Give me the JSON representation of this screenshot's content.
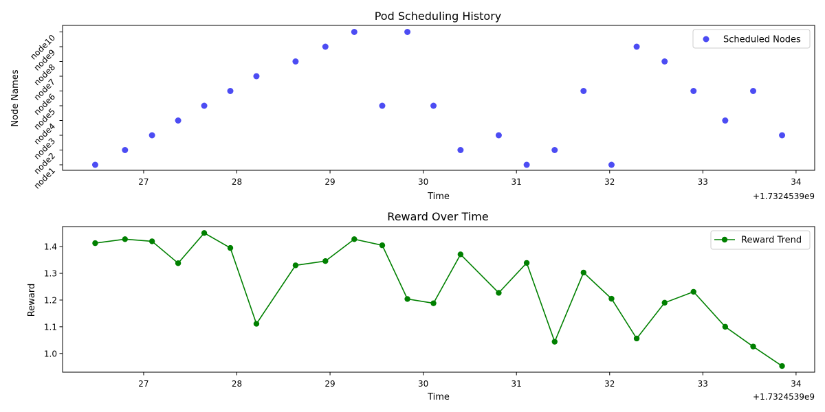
{
  "chart_data": [
    {
      "type": "scatter",
      "title": "Pod Scheduling History",
      "xlabel": "Time",
      "ylabel": "Node Names",
      "x_offset_label": "+1.7324539e9",
      "xlim": [
        26.13,
        34.2
      ],
      "xticks": [
        27,
        28,
        29,
        30,
        31,
        32,
        33,
        34
      ],
      "yticks": [
        "node1",
        "node2",
        "node3",
        "node4",
        "node5",
        "node6",
        "node7",
        "node8",
        "node9",
        "node10"
      ],
      "series": [
        {
          "name": "Scheduled Nodes",
          "color": "#0000ee",
          "x": [
            26.48,
            26.8,
            27.09,
            27.37,
            27.65,
            27.93,
            28.21,
            28.63,
            28.95,
            29.26,
            29.56,
            29.83,
            30.11,
            30.4,
            30.81,
            31.11,
            31.41,
            31.72,
            32.02,
            32.29,
            32.59,
            32.9,
            33.24,
            33.54,
            33.85
          ],
          "y": [
            "node1",
            "node2",
            "node3",
            "node4",
            "node5",
            "node6",
            "node7",
            "node8",
            "node9",
            "node10",
            "node5",
            "node10",
            "node5",
            "node2",
            "node3",
            "node1",
            "node2",
            "node6",
            "node1",
            "node9",
            "node8",
            "node6",
            "node4",
            "node6",
            "node3"
          ]
        }
      ],
      "legend": "upper right",
      "grid": false
    },
    {
      "type": "line",
      "title": "Reward Over Time",
      "xlabel": "Time",
      "ylabel": "Reward",
      "x_offset_label": "+1.7324539e9",
      "xlim": [
        26.13,
        34.2
      ],
      "ylim": [
        0.93,
        1.475
      ],
      "xticks": [
        27,
        28,
        29,
        30,
        31,
        32,
        33,
        34
      ],
      "yticks": [
        1.0,
        1.1,
        1.2,
        1.3,
        1.4
      ],
      "series": [
        {
          "name": "Reward Trend",
          "color": "#008000",
          "x": [
            26.48,
            26.8,
            27.09,
            27.37,
            27.65,
            27.93,
            28.21,
            28.63,
            28.95,
            29.26,
            29.56,
            29.83,
            30.11,
            30.4,
            30.81,
            31.11,
            31.41,
            31.72,
            32.02,
            32.29,
            32.59,
            32.9,
            33.24,
            33.54,
            33.85
          ],
          "y": [
            1.413,
            1.428,
            1.42,
            1.338,
            1.451,
            1.395,
            1.111,
            1.33,
            1.346,
            1.428,
            1.405,
            1.204,
            1.188,
            1.371,
            1.227,
            1.339,
            1.044,
            1.303,
            1.205,
            1.056,
            1.19,
            1.231,
            1.1,
            1.026,
            0.953
          ]
        }
      ],
      "legend": "upper right",
      "grid": false
    }
  ]
}
